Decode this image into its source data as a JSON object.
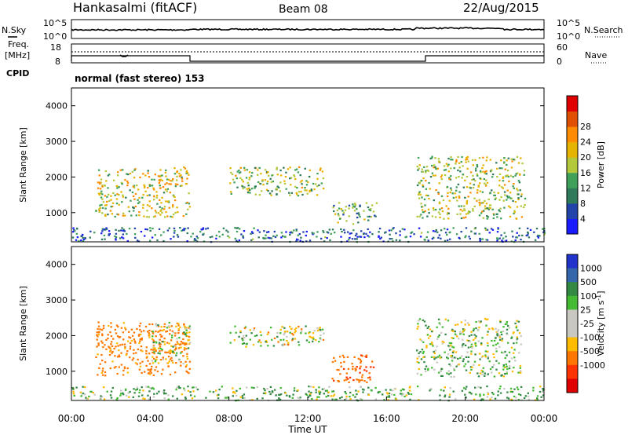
{
  "header": {
    "station": "Hankasalmi (fitACF)",
    "beam": "Beam 08",
    "date": "22/Aug/2015",
    "cpid_label": "CPID",
    "program": "normal (fast stereo) 153"
  },
  "noise_panel": {
    "left_label": "N.Sky",
    "right_label": "N.Search",
    "left_ticks": [
      "10^5",
      "10^0"
    ],
    "right_ticks": [
      "10^5",
      "10^0"
    ]
  },
  "freq_panel": {
    "left_label_1": "Freq.",
    "left_label_2": "[MHz]",
    "right_label": "Nave",
    "left_ticks": [
      "18",
      "8"
    ],
    "right_ticks": [
      "60",
      "0"
    ]
  },
  "chart_data": [
    {
      "type": "heatmap",
      "name": "power",
      "ylabel": "Slant Range [km]",
      "xlabel": "",
      "xlim": [
        "00:00",
        "24:00"
      ],
      "ylim": [
        180,
        4500
      ],
      "yticks": [
        "1000",
        "2000",
        "3000",
        "4000"
      ],
      "colorbar_label": "Power [dB]",
      "colorbar_ticks": [
        "4",
        "8",
        "12",
        "16",
        "20",
        "24",
        "28"
      ],
      "colors": [
        "#1a1aff",
        "#2244aa",
        "#2e7a5a",
        "#3fa05a",
        "#b4c83c",
        "#e6b400",
        "#ff8c00",
        "#e05000",
        "#e00000"
      ],
      "regions": [
        {
          "t": [
            1.2,
            6.0
          ],
          "r": [
            900,
            2300
          ],
          "level": 0.55
        },
        {
          "t": [
            8.0,
            12.8
          ],
          "r": [
            1500,
            2300
          ],
          "level": 0.45
        },
        {
          "t": [
            13.2,
            15.5
          ],
          "r": [
            700,
            1300
          ],
          "level": 0.35
        },
        {
          "t": [
            17.5,
            23.0
          ],
          "r": [
            850,
            2600
          ],
          "level": 0.5
        },
        {
          "t": [
            0.0,
            24.0
          ],
          "r": [
            200,
            600
          ],
          "level": 0.2
        }
      ]
    },
    {
      "type": "heatmap",
      "name": "velocity",
      "ylabel": "Slant Range [km]",
      "xlabel": "Time UT",
      "xticks": [
        "00:00",
        "04:00",
        "08:00",
        "12:00",
        "16:00",
        "20:00",
        "00:00"
      ],
      "ylim": [
        180,
        4500
      ],
      "yticks": [
        "1000",
        "2000",
        "3000",
        "4000"
      ],
      "colorbar_label": "Velocity [m s",
      "colorbar_label_sup": "-1",
      "colorbar_label_end": "]",
      "colorbar_ticks": [
        "1000",
        "500",
        "100",
        "25",
        "-25",
        "-100",
        "-500",
        "-1000"
      ],
      "colors": [
        "#2233cc",
        "#3366aa",
        "#338844",
        "#44bb33",
        "#c8c8c0",
        "#c8c8c0",
        "#ffbb00",
        "#ff7700",
        "#ff3300",
        "#e00000"
      ],
      "regions": [
        {
          "t": [
            1.2,
            6.0
          ],
          "r": [
            900,
            2400
          ],
          "v": -200
        },
        {
          "t": [
            4.0,
            6.0
          ],
          "r": [
            1200,
            2400
          ],
          "v": 0
        },
        {
          "t": [
            8.0,
            12.8
          ],
          "r": [
            1700,
            2300
          ],
          "v": 0
        },
        {
          "t": [
            13.2,
            15.3
          ],
          "r": [
            700,
            1500
          ],
          "v": -400
        },
        {
          "t": [
            17.5,
            22.8
          ],
          "r": [
            850,
            2500
          ],
          "v": 50
        },
        {
          "t": [
            0.0,
            24.0
          ],
          "r": [
            200,
            600
          ],
          "v": 80
        }
      ]
    }
  ]
}
